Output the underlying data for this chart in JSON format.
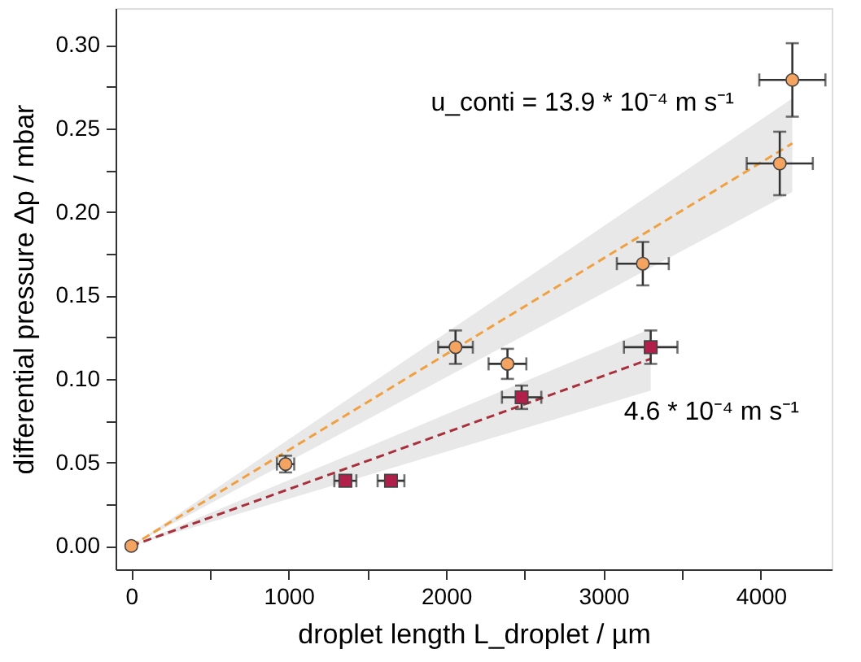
{
  "chart_data": {
    "type": "scatter",
    "xlabel": "droplet length L_droplet  /  µm",
    "ylabel": "differential pressure Δp  /  mbar",
    "xlim": [
      -100,
      4450
    ],
    "ylim": [
      -0.014,
      0.322
    ],
    "xticks": [
      0,
      {
        "value": 500,
        "label": null
      },
      1000,
      {
        "value": 1500,
        "label": null
      },
      2000,
      {
        "value": 2500,
        "label": null
      },
      3000,
      {
        "value": 3500,
        "label": null
      },
      4000
    ],
    "yticks": [
      {
        "value": 0,
        "label": "0.00"
      },
      {
        "value": 0.025,
        "label": null
      },
      {
        "value": 0.05,
        "label": "0.05"
      },
      {
        "value": 0.075,
        "label": null
      },
      {
        "value": 0.1,
        "label": "0.10"
      },
      {
        "value": 0.125,
        "label": null
      },
      {
        "value": 0.15,
        "label": "0.15"
      },
      {
        "value": 0.175,
        "label": null
      },
      {
        "value": 0.2,
        "label": "0.20"
      },
      {
        "value": 0.225,
        "label": null
      },
      {
        "value": 0.25,
        "label": "0.25"
      },
      {
        "value": 0.275,
        "label": null
      },
      {
        "value": 0.3,
        "label": "0.30"
      }
    ],
    "grid": false,
    "series": [
      {
        "type": "line",
        "color": "#f0a040",
        "line_style": "dashed",
        "marker": "none",
        "x": [
          0,
          4200
        ],
        "values": [
          0,
          0.241
        ],
        "lower": [
          0,
          0.212
        ],
        "upper": [
          0,
          0.268
        ]
      },
      {
        "type": "line",
        "color": "#a8303c",
        "line_style": "dashed",
        "marker": "none",
        "x": [
          0,
          3300
        ],
        "values": [
          0,
          0.112
        ],
        "lower": [
          0,
          0.093
        ],
        "upper": [
          0,
          0.13
        ]
      },
      {
        "color": "#f4a460",
        "marker": "circle",
        "x": [
          0,
          980,
          2060,
          2390,
          3250,
          4120,
          4200
        ],
        "values": [
          0,
          0.049,
          0.119,
          0.109,
          0.169,
          0.229,
          0.279
        ],
        "errors": [
          null,
          0.005,
          0.01,
          0.009,
          0.013,
          0.019,
          0.022
        ],
        "xerrors": [
          null,
          55,
          110,
          120,
          165,
          210,
          210
        ]
      },
      {
        "color": "#b0204a",
        "marker": "square",
        "x": [
          1360,
          1650,
          2480,
          3300
        ],
        "values": [
          0.039,
          0.039,
          0.089,
          0.119
        ],
        "errors": [
          0.003,
          0.003,
          0.007,
          0.01
        ],
        "xerrors": [
          70,
          85,
          125,
          170
        ]
      }
    ],
    "annotations": [
      "u_conti = 13.9 * 10⁻⁴ m s⁻¹",
      "4.6 * 10⁻⁴ m s⁻¹"
    ]
  }
}
